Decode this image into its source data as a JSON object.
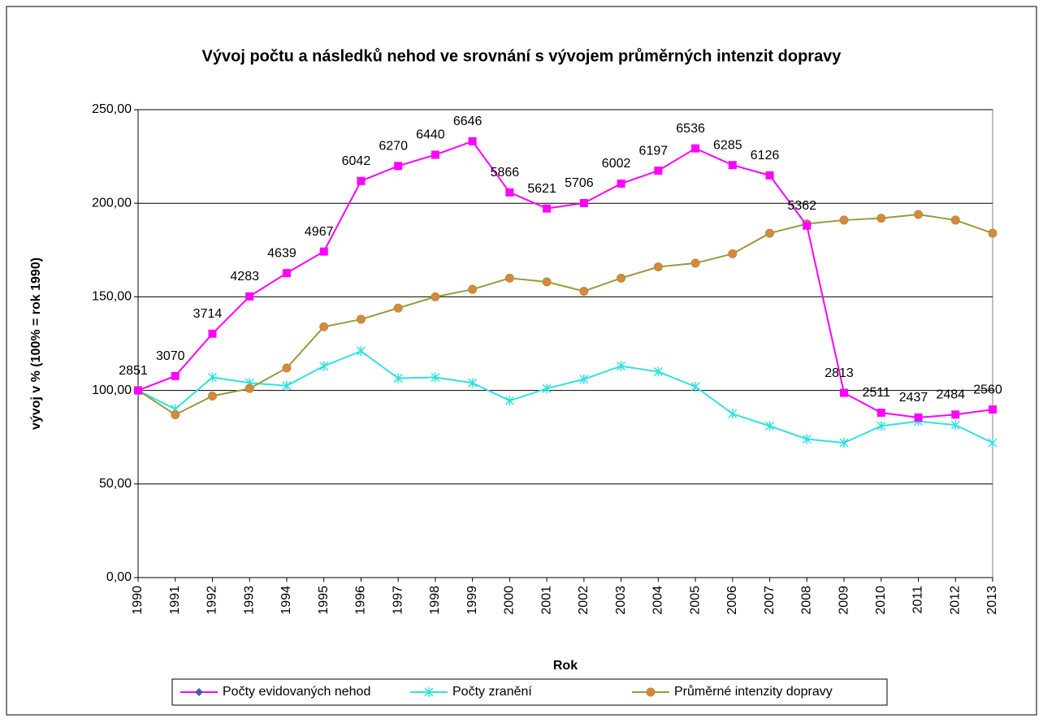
{
  "chart_data": {
    "type": "line",
    "title": "Vývoj počtu a následků nehod ve srovnání s vývojem průměrných intenzit dopravy",
    "x_label": "Rok",
    "y_label": "vývoj v % (100% = rok 1990)",
    "categories": [
      "1990",
      "1991",
      "1992",
      "1993",
      "1994",
      "1995",
      "1996",
      "1997",
      "1998",
      "1999",
      "2000",
      "2001",
      "2002",
      "2003",
      "2004",
      "2005",
      "2006",
      "2007",
      "2008",
      "2009",
      "2010",
      "2011",
      "2012",
      "2013"
    ],
    "ylim": [
      0,
      250
    ],
    "yticks": [
      {
        "value": 0,
        "label": "0,00"
      },
      {
        "value": 50,
        "label": "50,00"
      },
      {
        "value": 100,
        "label": "100,00"
      },
      {
        "value": 150,
        "label": "150,00"
      },
      {
        "value": 200,
        "label": "200,00"
      },
      {
        "value": 250,
        "label": "250,00"
      }
    ],
    "grid": true,
    "series": [
      {
        "name": "Počty evidovaných nehod",
        "color": "#ff00ff",
        "marker": "square",
        "marker_color": "#ff00ff",
        "legend_marker": "diamond",
        "legend_marker_color": "#3f5fa8",
        "values": [
          100,
          107.7,
          130.3,
          150.2,
          162.7,
          174.2,
          211.9,
          219.9,
          225.9,
          233.1,
          205.8,
          197.2,
          200.1,
          210.5,
          217.4,
          229.3,
          220.4,
          214.9,
          188.1,
          98.7,
          88.1,
          85.5,
          87.1,
          89.8
        ],
        "data_labels": [
          2851,
          3070,
          3714,
          4283,
          4639,
          4967,
          6042,
          6270,
          6440,
          6646,
          5866,
          5621,
          5706,
          6002,
          6197,
          6536,
          6285,
          6126,
          5362,
          2813,
          2511,
          2437,
          2484,
          2560
        ]
      },
      {
        "name": "Počty zranění",
        "color": "#33e0e0",
        "marker": "asterisk",
        "marker_color": "#33e0e0",
        "values": [
          100,
          90,
          107,
          104,
          102.5,
          113,
          121,
          106.5,
          107,
          104,
          94.5,
          101,
          106,
          113,
          110,
          102,
          87.5,
          81,
          74,
          72,
          81,
          83.5,
          81.5,
          72
        ]
      },
      {
        "name": "Průměrné intenzity dopravy",
        "color": "#9a9a3c",
        "marker": "circle",
        "marker_color": "#e0843c",
        "values": [
          100,
          87,
          97,
          101,
          112,
          134,
          138,
          144,
          150,
          154,
          160,
          158,
          153,
          160,
          166,
          168,
          173,
          184,
          189,
          191,
          192,
          194,
          191,
          184
        ]
      }
    ]
  }
}
